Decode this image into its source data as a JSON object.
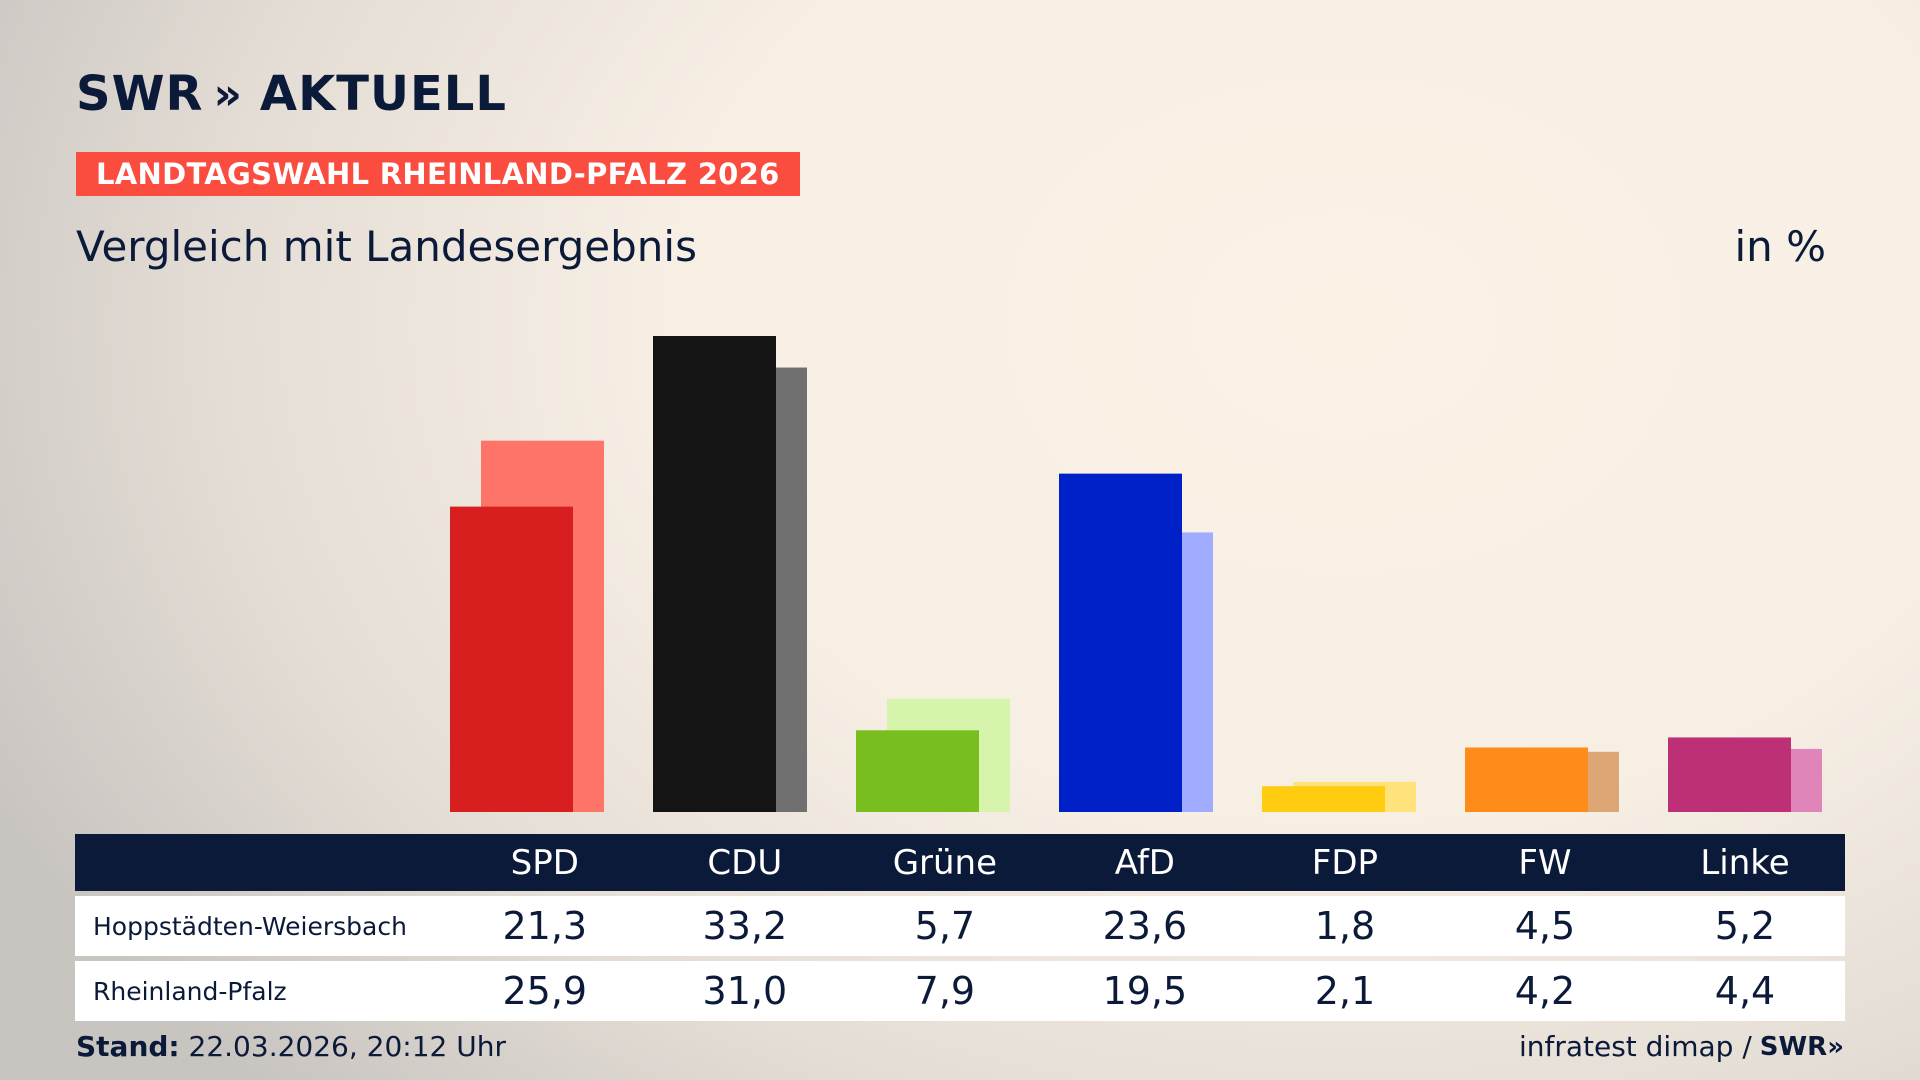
{
  "brand": {
    "name": "SWR",
    "chevrons": "»",
    "product": "AKTUELL"
  },
  "election_badge": "LANDTAGSWAHL RHEINLAND-PFALZ 2026",
  "subtitle": "Vergleich mit Landesergebnis",
  "unit": "in %",
  "colors": {
    "badge": "#fa4d3f",
    "navy": "#0c1a3a",
    "party_primary": [
      "#d71f1f",
      "#141414",
      "#78be1e",
      "#0021c7",
      "#ffcc0f",
      "#ff8c1a",
      "#be3075"
    ],
    "party_secondary": [
      "#ff7469",
      "#707070",
      "#d6f4ab",
      "#a0acff",
      "#ffe27a",
      "#dca675",
      "#df85b9"
    ]
  },
  "chart_data": {
    "type": "bar",
    "categories": [
      "SPD",
      "CDU",
      "Grüne",
      "AfD",
      "FDP",
      "FW",
      "Linke"
    ],
    "series": [
      {
        "name": "Hoppstädten-Weiersbach",
        "values": [
          21.3,
          33.2,
          5.7,
          23.6,
          1.8,
          4.5,
          5.2
        ]
      },
      {
        "name": "Rheinland-Pfalz",
        "values": [
          25.9,
          31.0,
          7.9,
          19.5,
          2.1,
          4.2,
          4.4
        ]
      }
    ],
    "ylim": [
      0,
      33.2
    ],
    "grid": false,
    "legend": "table-below"
  },
  "table": {
    "rows": [
      {
        "label": "Hoppstädten-Weiersbach",
        "values": [
          "21,3",
          "33,2",
          "5,7",
          "23,6",
          "1,8",
          "4,5",
          "5,2"
        ]
      },
      {
        "label": "Rheinland-Pfalz",
        "values": [
          "25,9",
          "31,0",
          "7,9",
          "19,5",
          "2,1",
          "4,2",
          "4,4"
        ]
      }
    ]
  },
  "footer": {
    "stand_label": "Stand:",
    "stand_value": "22.03.2026, 20:12 Uhr",
    "source": "infratest dimap /",
    "source_brand": "SWR»"
  }
}
